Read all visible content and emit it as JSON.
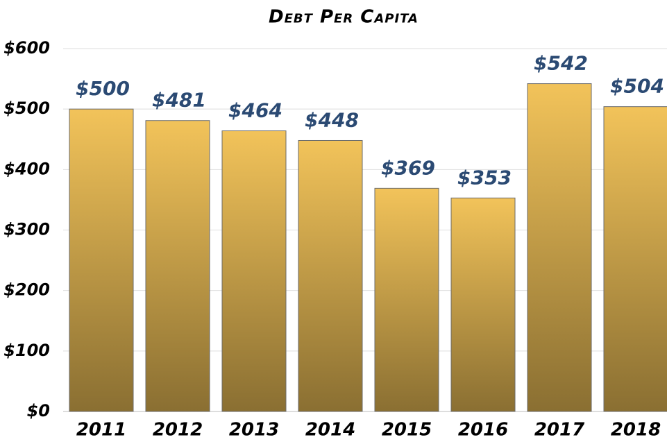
{
  "chart_data": {
    "type": "bar",
    "title": "Debt Per Capita",
    "categories": [
      "2011",
      "2012",
      "2013",
      "2014",
      "2015",
      "2016",
      "2017",
      "2018"
    ],
    "values": [
      500,
      481,
      464,
      448,
      369,
      353,
      542,
      504
    ],
    "value_labels": [
      "$500",
      "$481",
      "$464",
      "$448",
      "$369",
      "$353",
      "$542",
      "$504"
    ],
    "color": [
      "#f2c35a",
      "#8a6f32"
    ],
    "ylim": [
      0,
      600
    ],
    "yticks": [
      {
        "value": 0,
        "label": "$0"
      },
      {
        "value": 100,
        "label": "$100"
      },
      {
        "value": 200,
        "label": "$200"
      },
      {
        "value": 300,
        "label": "$300"
      },
      {
        "value": 400,
        "label": "$400"
      },
      {
        "value": 500,
        "label": "$500"
      },
      {
        "value": 600,
        "label": "$600"
      }
    ],
    "grid": true
  }
}
